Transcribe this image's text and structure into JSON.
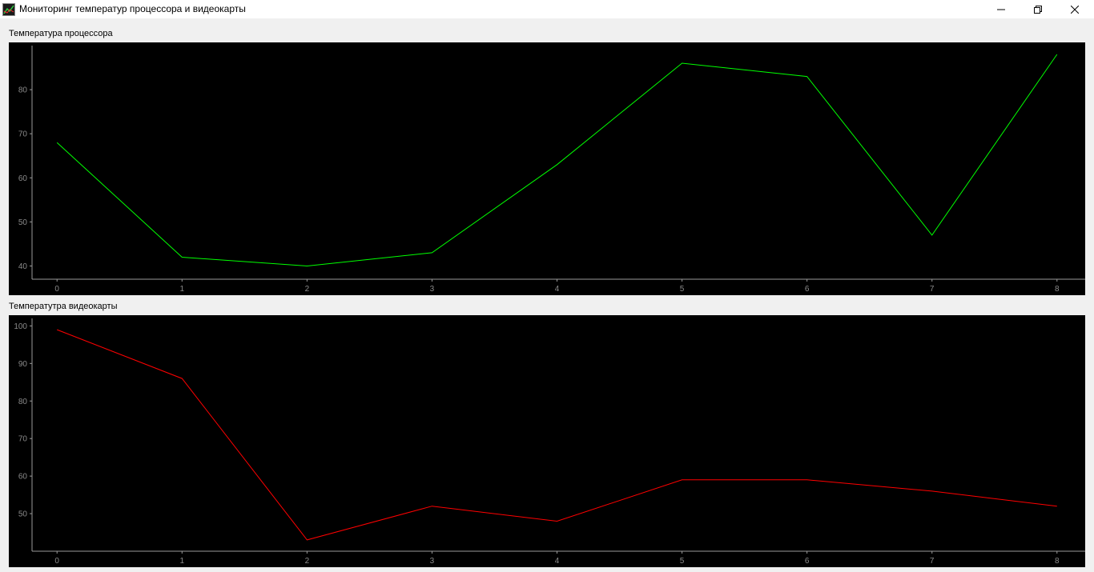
{
  "window": {
    "title": "Мониторинг температур процессора и видеокарты",
    "icon": "chart-line-icon",
    "controls": [
      "minimize-icon",
      "restore-icon",
      "close-icon"
    ]
  },
  "cpu_section": {
    "label": "Температура процессора"
  },
  "gpu_section": {
    "label": "Температутра видеокарты"
  },
  "chart_data": [
    {
      "type": "line",
      "title": "Температура процессора",
      "x": [
        0,
        1,
        2,
        3,
        4,
        5,
        6,
        7,
        8
      ],
      "series": [
        {
          "values": [
            68,
            42,
            40,
            43,
            63,
            86,
            83,
            47,
            88
          ],
          "color": "#00ff00"
        }
      ],
      "xlim": [
        -0.2,
        8.2
      ],
      "ylim": [
        37,
        90
      ],
      "xticks": [
        0,
        1,
        2,
        3,
        4,
        5,
        6,
        7,
        8
      ],
      "yticks": [
        40,
        50,
        60,
        70,
        80
      ],
      "background": "#000000",
      "grid": false,
      "legend": "none"
    },
    {
      "type": "line",
      "title": "Температутра видеокарты",
      "x": [
        0,
        1,
        2,
        3,
        4,
        5,
        6,
        7,
        8
      ],
      "series": [
        {
          "values": [
            99,
            86,
            43,
            52,
            48,
            59,
            59,
            56,
            52
          ],
          "color": "#ff0000"
        }
      ],
      "xlim": [
        -0.2,
        8.2
      ],
      "ylim": [
        40,
        102
      ],
      "xticks": [
        0,
        1,
        2,
        3,
        4,
        5,
        6,
        7,
        8
      ],
      "yticks": [
        50,
        60,
        70,
        80,
        90,
        100
      ],
      "background": "#000000",
      "grid": false,
      "legend": "none"
    }
  ]
}
